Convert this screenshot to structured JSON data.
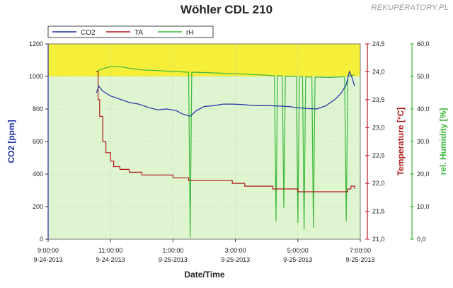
{
  "chart_data": {
    "type": "line",
    "title": "Wöhler CDL 210",
    "watermark": "REKUPERATORY.PL",
    "xlabel": "Date/Time",
    "x_ticks": [
      {
        "time": "9:00:00",
        "date": "9-24-2013"
      },
      {
        "time": "11:00:00",
        "date": "9-24-2013"
      },
      {
        "time": "1:00:00",
        "date": "9-25-2013"
      },
      {
        "time": "3:00:00",
        "date": "9-25-2013"
      },
      {
        "time": "5:00:00",
        "date": "9-25-2013"
      },
      {
        "time": "7:00:00",
        "date": "9-25-2013"
      }
    ],
    "x_range_hours": [
      9,
      19
    ],
    "axes": {
      "left": {
        "label": "CO2 [ppm]",
        "color": "#1f2fa8",
        "min": 0,
        "max": 1200,
        "ticks": [
          "0",
          "200",
          "400",
          "600",
          "800",
          "1000",
          "1200"
        ]
      },
      "right1": {
        "label": "Temperature [°C]",
        "color": "#b01a1a",
        "min": 21.0,
        "max": 24.5,
        "ticks": [
          "21,0",
          "21,5",
          "22,0",
          "22,5",
          "23,0",
          "23,5",
          "24,0",
          "24,5"
        ]
      },
      "right2": {
        "label": "rel. Humidity [%]",
        "color": "#3cb83c",
        "min": 0,
        "max": 60,
        "ticks": [
          "0,0",
          "10,0",
          "20,0",
          "30,0",
          "40,0",
          "50,0",
          "60,0"
        ]
      }
    },
    "threshold_band": {
      "axis": "left",
      "from": 1000,
      "to": 1200,
      "color": "#f5ef3a"
    },
    "background_color": "#dff5d0",
    "legend": {
      "placement": "top-left"
    },
    "series": [
      {
        "name": "CO2",
        "axis": "left",
        "color": "#1f2fa8",
        "points": [
          [
            10.55,
            900
          ],
          [
            10.62,
            940
          ],
          [
            10.75,
            910
          ],
          [
            11.0,
            880
          ],
          [
            11.3,
            860
          ],
          [
            11.6,
            840
          ],
          [
            11.9,
            830
          ],
          [
            12.2,
            810
          ],
          [
            12.5,
            795
          ],
          [
            12.8,
            800
          ],
          [
            13.1,
            790
          ],
          [
            13.3,
            770
          ],
          [
            13.55,
            755
          ],
          [
            13.75,
            790
          ],
          [
            14.0,
            815
          ],
          [
            14.3,
            820
          ],
          [
            14.6,
            830
          ],
          [
            14.9,
            830
          ],
          [
            15.2,
            828
          ],
          [
            15.5,
            822
          ],
          [
            15.8,
            820
          ],
          [
            16.1,
            820
          ],
          [
            16.4,
            818
          ],
          [
            16.7,
            815
          ],
          [
            17.0,
            808
          ],
          [
            17.3,
            803
          ],
          [
            17.6,
            800
          ],
          [
            17.9,
            820
          ],
          [
            18.2,
            860
          ],
          [
            18.4,
            900
          ],
          [
            18.55,
            950
          ],
          [
            18.65,
            1030
          ],
          [
            18.72,
            1000
          ],
          [
            18.82,
            940
          ]
        ]
      },
      {
        "name": "TA",
        "axis": "right1",
        "color": "#b01a1a",
        "points": [
          [
            10.55,
            24.0
          ],
          [
            10.6,
            23.5
          ],
          [
            10.65,
            23.2
          ],
          [
            10.75,
            22.75
          ],
          [
            10.85,
            22.55
          ],
          [
            11.0,
            22.4
          ],
          [
            11.1,
            22.3
          ],
          [
            11.3,
            22.25
          ],
          [
            11.6,
            22.2
          ],
          [
            12.0,
            22.15
          ],
          [
            12.5,
            22.15
          ],
          [
            13.0,
            22.1
          ],
          [
            13.5,
            22.05
          ],
          [
            14.0,
            22.05
          ],
          [
            14.5,
            22.05
          ],
          [
            14.9,
            22.0
          ],
          [
            15.3,
            21.95
          ],
          [
            15.7,
            21.95
          ],
          [
            16.0,
            21.95
          ],
          [
            16.2,
            21.9
          ],
          [
            16.6,
            21.9
          ],
          [
            17.0,
            21.85
          ],
          [
            17.4,
            21.85
          ],
          [
            17.8,
            21.85
          ],
          [
            18.2,
            21.85
          ],
          [
            18.5,
            21.85
          ],
          [
            18.6,
            21.9
          ],
          [
            18.7,
            21.95
          ],
          [
            18.82,
            21.9
          ]
        ]
      },
      {
        "name": "rH",
        "axis": "right2",
        "color": "#3cb83c",
        "points": [
          [
            10.55,
            51.5
          ],
          [
            10.65,
            52.0
          ],
          [
            10.8,
            52.5
          ],
          [
            11.0,
            53.0
          ],
          [
            11.3,
            53.0
          ],
          [
            11.6,
            52.5
          ],
          [
            12.0,
            52.0
          ],
          [
            12.5,
            51.8
          ],
          [
            13.0,
            51.5
          ],
          [
            13.5,
            51.3
          ],
          [
            13.55,
            0.5
          ],
          [
            13.6,
            51.3
          ],
          [
            14.0,
            51.2
          ],
          [
            14.5,
            51.0
          ],
          [
            15.0,
            50.8
          ],
          [
            15.5,
            50.6
          ],
          [
            16.0,
            50.4
          ],
          [
            16.25,
            50.2
          ],
          [
            16.3,
            5.5
          ],
          [
            16.35,
            50.2
          ],
          [
            16.5,
            50.2
          ],
          [
            16.55,
            9.5
          ],
          [
            16.6,
            50.1
          ],
          [
            16.95,
            50.0
          ],
          [
            17.0,
            5.0
          ],
          [
            17.05,
            50.0
          ],
          [
            17.15,
            49.9
          ],
          [
            17.2,
            3.0
          ],
          [
            17.25,
            49.9
          ],
          [
            17.45,
            49.8
          ],
          [
            17.5,
            3.5
          ],
          [
            17.55,
            49.8
          ],
          [
            18.0,
            49.7
          ],
          [
            18.5,
            49.9
          ],
          [
            18.55,
            5.5
          ],
          [
            18.6,
            50.0
          ],
          [
            18.82,
            50.5
          ]
        ]
      }
    ]
  }
}
